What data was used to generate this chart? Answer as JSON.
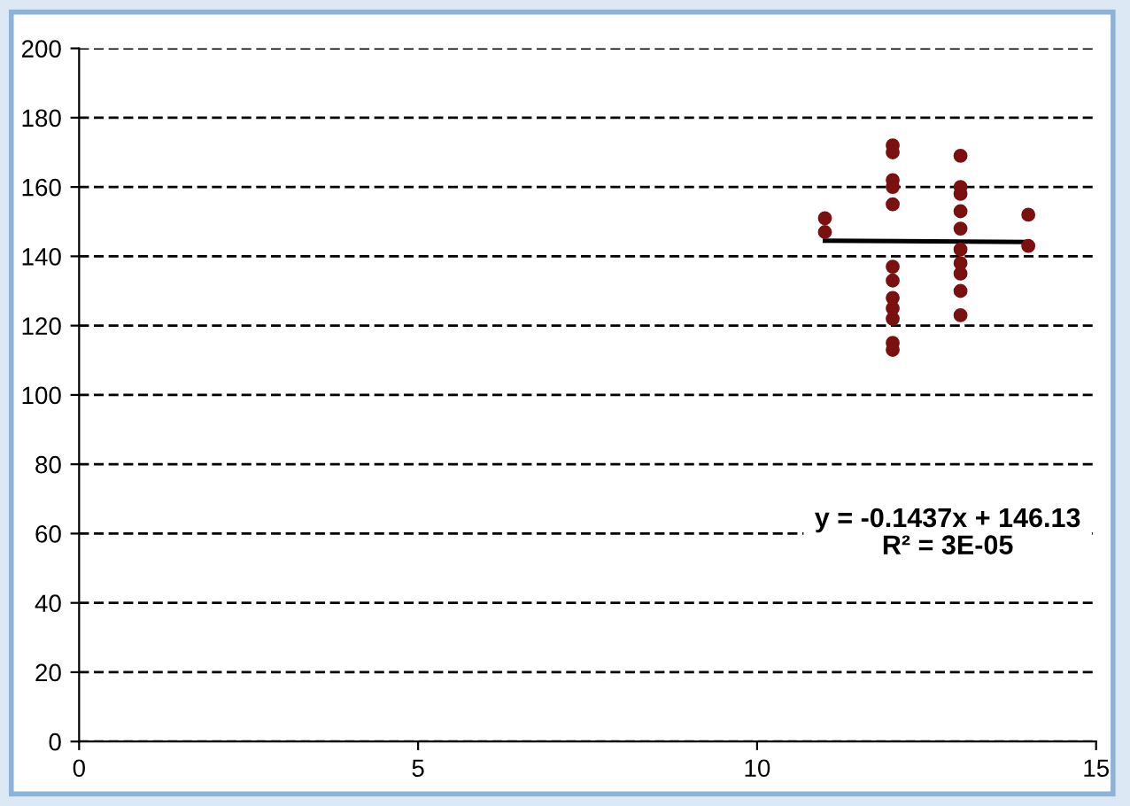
{
  "chart_data": {
    "type": "scatter",
    "xlim": [
      0,
      15
    ],
    "xticks": [
      0,
      5,
      10,
      15
    ],
    "ylim": [
      0,
      200
    ],
    "yticks": [
      0,
      20,
      40,
      60,
      80,
      100,
      120,
      140,
      160,
      180,
      200
    ],
    "grid": "y",
    "legend": false,
    "series": [
      {
        "marker": "circle",
        "color": "#7b1010",
        "x": [
          11,
          11,
          12,
          12,
          12,
          12,
          12,
          12,
          12,
          12,
          12,
          12,
          12,
          12,
          13,
          13,
          13,
          13,
          13,
          13,
          13,
          13,
          13,
          13,
          14,
          14
        ],
        "values": [
          151,
          147,
          172,
          170,
          162,
          160,
          155,
          137,
          133,
          128,
          125,
          122,
          115,
          113,
          169,
          160,
          158,
          153,
          148,
          142,
          138,
          135,
          130,
          123,
          152,
          143
        ]
      },
      {
        "type": "line",
        "color": "#000000",
        "x": [
          11,
          14
        ],
        "values": [
          144.5,
          144.1
        ]
      }
    ],
    "annotations": [
      "y = -0.1437x + 146.13\nR² = 3E-05"
    ]
  }
}
